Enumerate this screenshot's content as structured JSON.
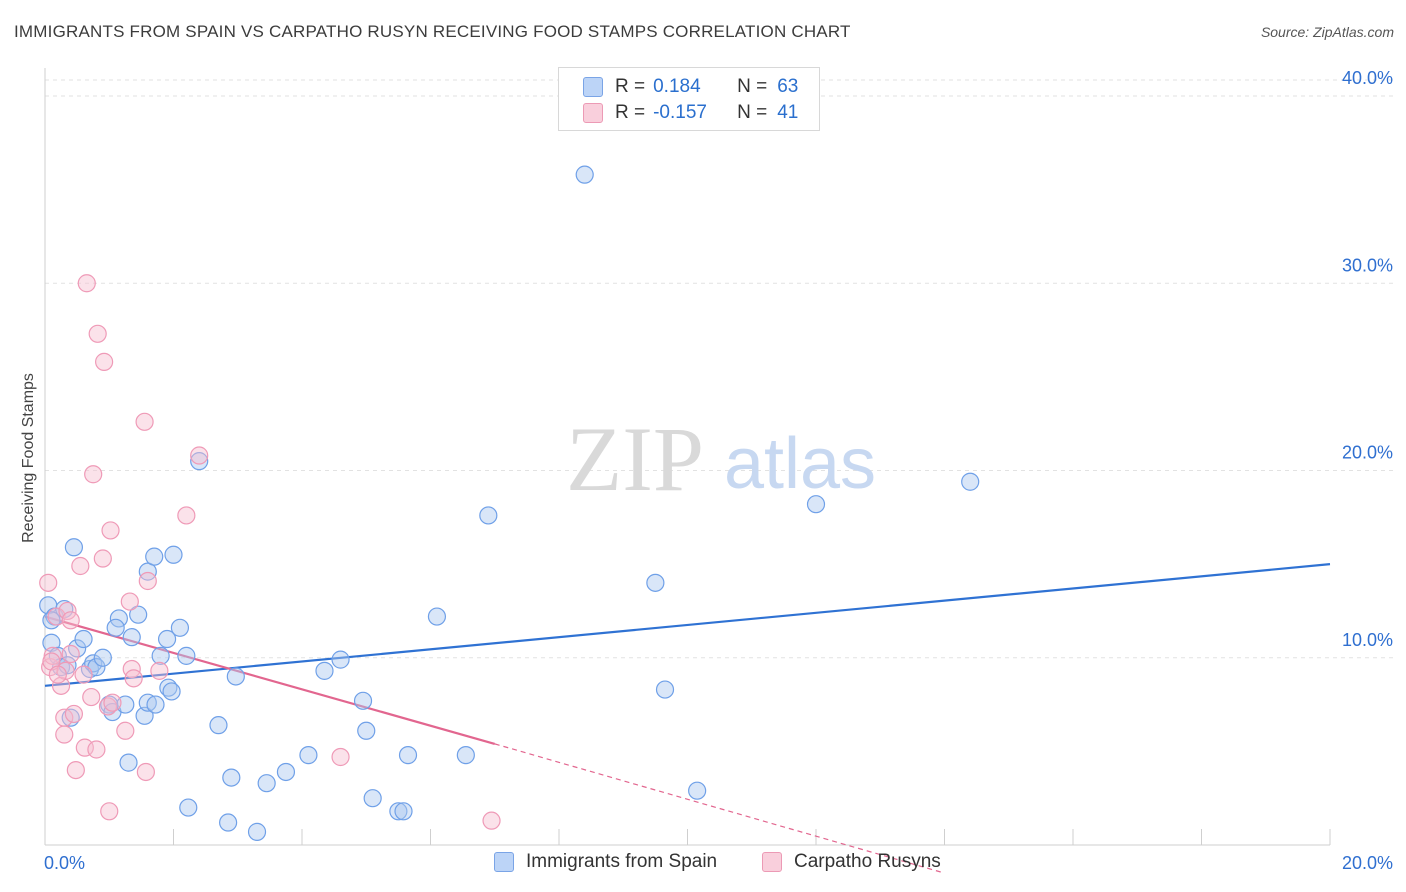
{
  "title": "IMMIGRANTS FROM SPAIN VS CARPATHO RUSYN RECEIVING FOOD STAMPS CORRELATION CHART",
  "source": "Source: ZipAtlas.com",
  "watermark": {
    "zip": "ZIP",
    "atlas": "atlas"
  },
  "colors": {
    "blue": "#6fa0e8",
    "blue_line": "#2f72d3",
    "pink": "#ef9ab7",
    "pink_line": "#e2668f",
    "axis_text": "#2f6fd0"
  },
  "legend_top": {
    "rows": [
      {
        "r_label": "R =",
        "r_value": "0.184",
        "n_label": "N =",
        "n_value": "63"
      },
      {
        "r_label": "R =",
        "r_value": "-0.157",
        "n_label": "N =",
        "n_value": "41"
      }
    ]
  },
  "legend_bottom": [
    "Immigrants from Spain",
    "Carpatho Rusyns"
  ],
  "chart_data": {
    "type": "scatter",
    "title": "IMMIGRANTS FROM SPAIN VS CARPATHO RUSYN RECEIVING FOOD STAMPS CORRELATION CHART",
    "xlabel": "",
    "ylabel": "Receiving Food Stamps",
    "xlim": [
      0,
      20
    ],
    "ylim": [
      0,
      40
    ],
    "x_tick_labels": [
      "0.0%",
      "20.0%"
    ],
    "y_ticks": [
      10,
      20,
      30,
      40
    ],
    "y_tick_labels": [
      "10.0%",
      "20.0%",
      "30.0%",
      "40.0%"
    ],
    "series": [
      {
        "name": "Immigrants from Spain",
        "color": "blue",
        "r": 0.184,
        "n": 63,
        "trend": {
          "x": [
            0,
            20
          ],
          "y": [
            8.5,
            15.0
          ],
          "dashed_from": null
        },
        "points": [
          [
            0.05,
            12.8
          ],
          [
            0.1,
            10.8
          ],
          [
            0.15,
            12.2
          ],
          [
            0.2,
            10.1
          ],
          [
            0.25,
            9.5
          ],
          [
            0.3,
            12.6
          ],
          [
            0.35,
            9.6
          ],
          [
            0.4,
            6.8
          ],
          [
            0.45,
            15.9
          ],
          [
            0.5,
            10.5
          ],
          [
            0.6,
            11.0
          ],
          [
            0.7,
            9.4
          ],
          [
            0.75,
            9.7
          ],
          [
            0.8,
            9.5
          ],
          [
            0.9,
            10.0
          ],
          [
            1.0,
            7.5
          ],
          [
            1.05,
            7.1
          ],
          [
            1.15,
            12.1
          ],
          [
            1.1,
            11.6
          ],
          [
            1.25,
            7.5
          ],
          [
            1.3,
            4.4
          ],
          [
            1.35,
            11.1
          ],
          [
            1.45,
            12.3
          ],
          [
            1.55,
            6.9
          ],
          [
            1.6,
            7.6
          ],
          [
            1.6,
            14.6
          ],
          [
            1.7,
            15.4
          ],
          [
            1.72,
            7.5
          ],
          [
            1.8,
            10.1
          ],
          [
            1.9,
            11.0
          ],
          [
            1.92,
            8.4
          ],
          [
            1.97,
            8.2
          ],
          [
            2.0,
            15.5
          ],
          [
            2.1,
            11.6
          ],
          [
            2.2,
            10.1
          ],
          [
            2.23,
            2.0
          ],
          [
            2.4,
            20.5
          ],
          [
            2.7,
            6.4
          ],
          [
            2.85,
            1.2
          ],
          [
            2.9,
            3.6
          ],
          [
            2.97,
            9.0
          ],
          [
            3.3,
            0.7
          ],
          [
            3.45,
            3.3
          ],
          [
            3.75,
            3.9
          ],
          [
            4.1,
            4.8
          ],
          [
            4.35,
            9.3
          ],
          [
            4.6,
            9.9
          ],
          [
            4.95,
            7.7
          ],
          [
            5.0,
            6.1
          ],
          [
            5.1,
            2.5
          ],
          [
            5.5,
            1.8
          ],
          [
            5.58,
            1.8
          ],
          [
            5.65,
            4.8
          ],
          [
            6.1,
            12.2
          ],
          [
            6.55,
            4.8
          ],
          [
            6.9,
            17.6
          ],
          [
            8.4,
            35.8
          ],
          [
            9.5,
            14.0
          ],
          [
            9.65,
            8.3
          ],
          [
            10.15,
            2.9
          ],
          [
            12.0,
            18.2
          ],
          [
            14.4,
            19.4
          ],
          [
            0.1,
            12.0
          ]
        ]
      },
      {
        "name": "Carpatho Rusyns",
        "color": "pink",
        "r": -0.157,
        "n": 41,
        "trend": {
          "x": [
            0,
            7.0
          ],
          "y": [
            12.2,
            5.4
          ],
          "dashed_to": [
            14.0,
            -1.5
          ]
        },
        "points": [
          [
            0.05,
            14.0
          ],
          [
            0.08,
            9.5
          ],
          [
            0.12,
            10.1
          ],
          [
            0.18,
            12.2
          ],
          [
            0.25,
            8.5
          ],
          [
            0.3,
            6.8
          ],
          [
            0.32,
            9.3
          ],
          [
            0.35,
            12.5
          ],
          [
            0.4,
            10.2
          ],
          [
            0.45,
            7.0
          ],
          [
            0.48,
            4.0
          ],
          [
            0.55,
            14.9
          ],
          [
            0.6,
            9.1
          ],
          [
            0.62,
            5.2
          ],
          [
            0.65,
            30.0
          ],
          [
            0.72,
            7.9
          ],
          [
            0.75,
            19.8
          ],
          [
            0.8,
            5.1
          ],
          [
            0.82,
            27.3
          ],
          [
            0.9,
            15.3
          ],
          [
            0.92,
            25.8
          ],
          [
            0.98,
            7.4
          ],
          [
            1.0,
            1.8
          ],
          [
            1.02,
            16.8
          ],
          [
            1.05,
            7.6
          ],
          [
            1.25,
            6.1
          ],
          [
            1.32,
            13.0
          ],
          [
            1.35,
            9.4
          ],
          [
            1.38,
            8.9
          ],
          [
            1.55,
            22.6
          ],
          [
            1.57,
            3.9
          ],
          [
            1.6,
            14.1
          ],
          [
            1.78,
            9.3
          ],
          [
            2.2,
            17.6
          ],
          [
            2.4,
            20.8
          ],
          [
            4.6,
            4.7
          ],
          [
            6.95,
            1.3
          ],
          [
            0.4,
            12.0
          ],
          [
            0.3,
            5.9
          ],
          [
            0.1,
            9.8
          ],
          [
            0.2,
            9.1
          ]
        ]
      }
    ]
  }
}
